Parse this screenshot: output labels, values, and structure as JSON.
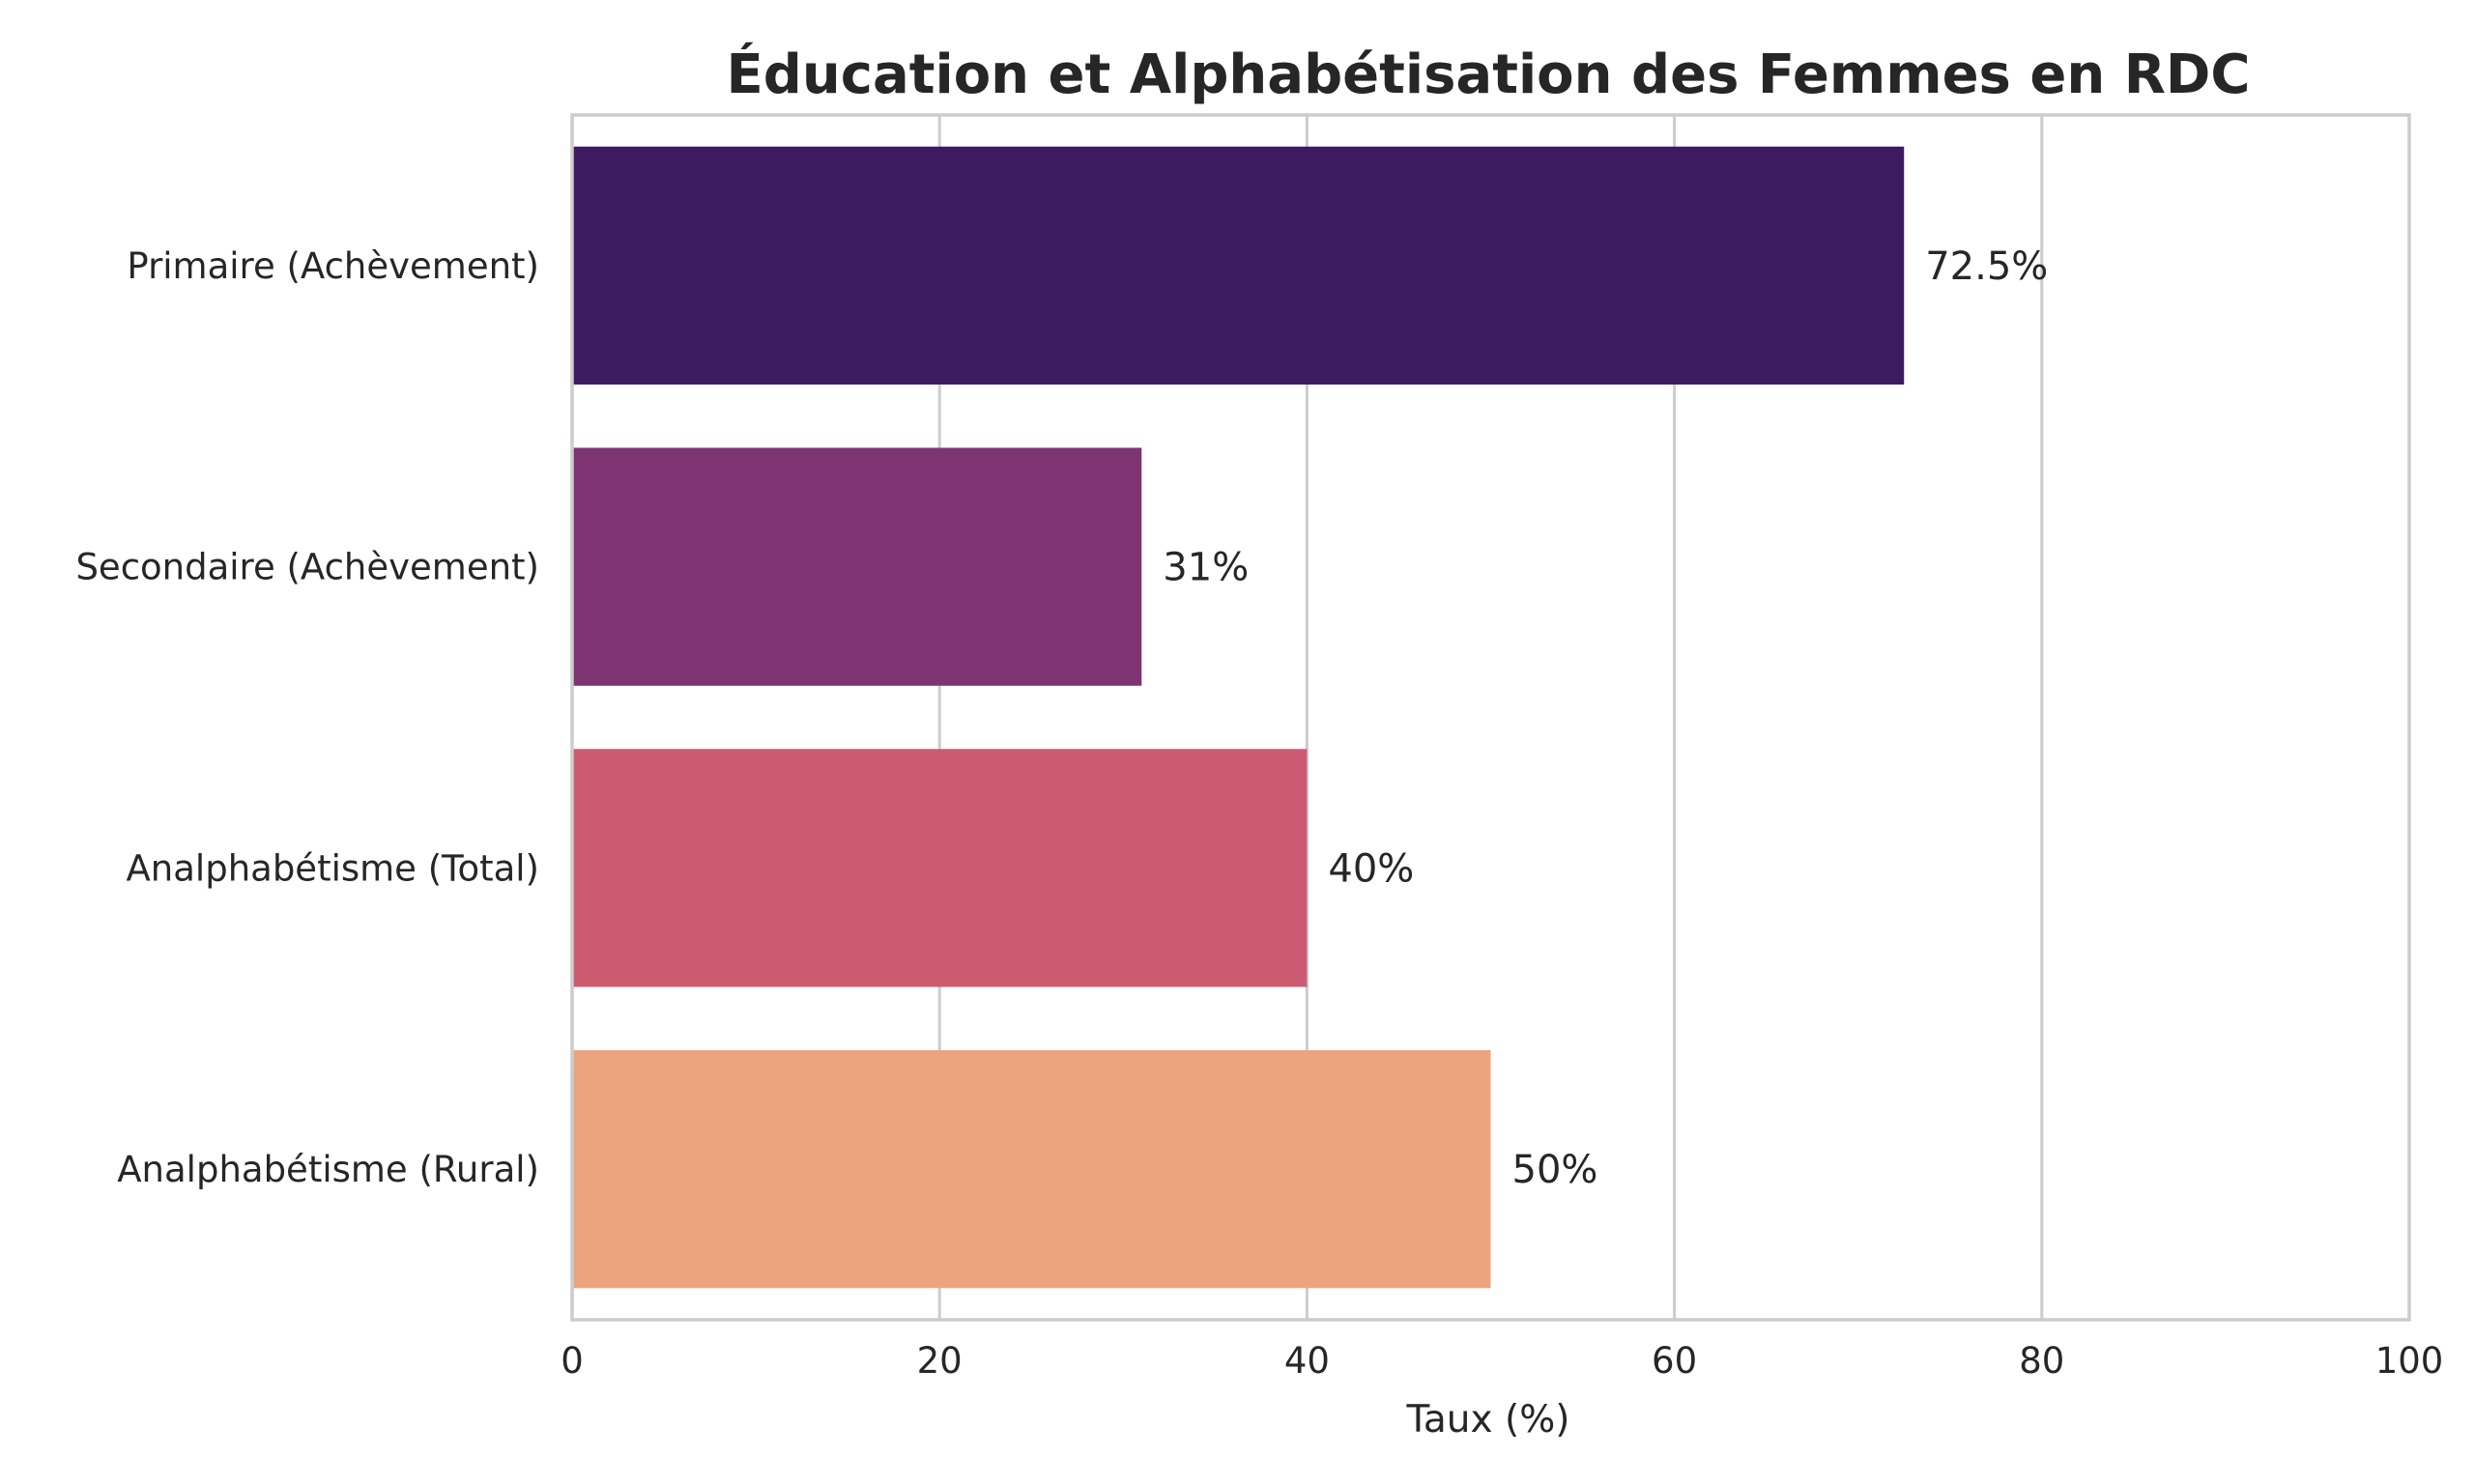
{
  "chart_data": {
    "type": "bar",
    "orientation": "horizontal",
    "title": "Éducation et Alphabétisation des Femmes en RDC",
    "xlabel": "Taux (%)",
    "ylabel": "",
    "xlim": [
      0,
      100
    ],
    "xticks": [
      "0",
      "20",
      "40",
      "60",
      "80",
      "100"
    ],
    "grid": "vertical",
    "categories": [
      "Primaire (Achèvement)",
      "Secondaire (Achèvement)",
      "Analphabétisme (Total)",
      "Analphabétisme (Rural)"
    ],
    "values": [
      72.5,
      31,
      40,
      50
    ],
    "data_labels": [
      "72.5%",
      "31%",
      "40%",
      "50%"
    ],
    "colors": [
      "#3e1a63",
      "#7e3372",
      "#cc5b72",
      "#eca47f"
    ]
  }
}
